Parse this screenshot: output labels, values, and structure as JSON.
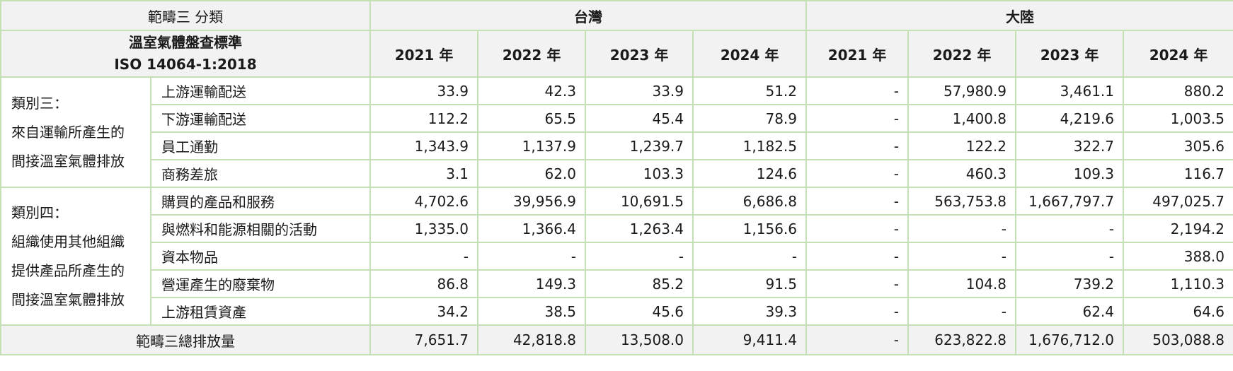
{
  "header": {
    "scope_label": "範疇三  分類",
    "regions": [
      "台灣",
      "大陸"
    ],
    "standard_line1": "溫室氣體盤查標準",
    "standard_line2": "ISO 14064-1:2018",
    "years": [
      "2021 年",
      "2022 年",
      "2023 年",
      "2024 年",
      "2021 年",
      "2022 年",
      "2023 年",
      "2024 年"
    ]
  },
  "categories": [
    {
      "label_lines": [
        "類別三：",
        "來自運輸所產生的",
        "間接溫室氣體排放"
      ],
      "rows": [
        {
          "item": "上游運輸配送",
          "values": [
            "33.9",
            "42.3",
            "33.9",
            "51.2",
            "-",
            "57,980.9",
            "3,461.1",
            "880.2"
          ]
        },
        {
          "item": "下游運輸配送",
          "values": [
            "112.2",
            "65.5",
            "45.4",
            "78.9",
            "-",
            "1,400.8",
            "4,219.6",
            "1,003.5"
          ]
        },
        {
          "item": "員工通勤",
          "values": [
            "1,343.9",
            "1,137.9",
            "1,239.7",
            "1,182.5",
            "-",
            "122.2",
            "322.7",
            "305.6"
          ]
        },
        {
          "item": "商務差旅",
          "values": [
            "3.1",
            "62.0",
            "103.3",
            "124.6",
            "-",
            "460.3",
            "109.3",
            "116.7"
          ]
        }
      ]
    },
    {
      "label_lines": [
        "類別四：",
        "組織使用其他組織",
        "提供產品所產生的",
        "間接溫室氣體排放"
      ],
      "rows": [
        {
          "item": "購買的產品和服務",
          "values": [
            "4,702.6",
            "39,956.9",
            "10,691.5",
            "6,686.8",
            "-",
            "563,753.8",
            "1,667,797.7",
            "497,025.7"
          ]
        },
        {
          "item": "與燃料和能源相關的活動",
          "values": [
            "1,335.0",
            "1,366.4",
            "1,263.4",
            "1,156.6",
            "-",
            "-",
            "-",
            "2,194.2"
          ]
        },
        {
          "item": "資本物品",
          "values": [
            "-",
            "-",
            "-",
            "-",
            "-",
            "-",
            "-",
            "388.0"
          ]
        },
        {
          "item": "營運產生的廢棄物",
          "values": [
            "86.8",
            "149.3",
            "85.2",
            "91.5",
            "-",
            "104.8",
            "739.2",
            "1,110.3"
          ]
        },
        {
          "item": "上游租賃資產",
          "values": [
            "34.2",
            "38.5",
            "45.6",
            "39.3",
            "-",
            "-",
            "62.4",
            "64.6"
          ]
        }
      ]
    }
  ],
  "total": {
    "label": "範疇三總排放量",
    "values": [
      "7,651.7",
      "42,818.8",
      "13,508.0",
      "9,411.4",
      "-",
      "623,822.8",
      "1,676,712.0",
      "503,088.8"
    ]
  }
}
